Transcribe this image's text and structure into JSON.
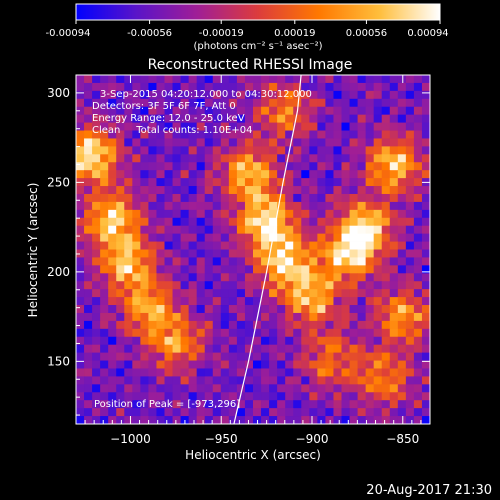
{
  "chart_data": {
    "type": "heatmap",
    "title": "Reconstructed RHESSI Image",
    "xlabel": "Heliocentric X (arcsec)",
    "ylabel": "Heliocentric Y (arcsec)",
    "xlim": [
      -1030,
      -835
    ],
    "ylim": [
      115,
      310
    ],
    "xticks": [
      -1000,
      -950,
      -900,
      -850
    ],
    "xtick_labels": [
      "−1000",
      "−950",
      "−900",
      "−850"
    ],
    "yticks": [
      150,
      200,
      250,
      300
    ],
    "ytick_labels": [
      "150",
      "200",
      "250",
      "300"
    ],
    "colorbar": {
      "range": [
        -0.00094,
        0.00094
      ],
      "ticks": [
        -0.00094,
        -0.00056,
        -0.00019,
        0.00019,
        0.00056,
        0.00094
      ],
      "tick_labels": [
        "-0.00094",
        "-0.00056",
        "-0.00019",
        "0.00019",
        "0.00056",
        "0.00094"
      ],
      "unit_label": "(photons cm⁻² s⁻¹ asec⁻²)",
      "colors": [
        "#0000ff",
        "#5a14c8",
        "#a01e96",
        "#dc3c3c",
        "#ff7800",
        "#ffbe3c",
        "#ffffff"
      ]
    },
    "annotations": {
      "time_range": "3-Sep-2015 04:20:12.000 to 04:30:12.000",
      "detectors": "Detectors: 3F 5F 6F 7F, Att 0",
      "energy_range": "Energy Range: 12.0 - 25.0 keV",
      "method_counts": "Clean     Total counts: 1.10E+04",
      "peak": "Position of Peak = [-973,296]"
    },
    "peak_position": [
      -973,
      296
    ],
    "limb_line": [
      [
        -943,
        115
      ],
      [
        -935,
        150
      ],
      [
        -925,
        200
      ],
      [
        -916,
        250
      ],
      [
        -908,
        290
      ],
      [
        -906,
        310
      ]
    ],
    "bright_regions": [
      {
        "x": -1022,
        "y": 265,
        "level": 1.0
      },
      {
        "x": -1010,
        "y": 230,
        "level": 0.85
      },
      {
        "x": -1002,
        "y": 205,
        "level": 0.8
      },
      {
        "x": -990,
        "y": 180,
        "level": 0.7
      },
      {
        "x": -975,
        "y": 160,
        "level": 0.65
      },
      {
        "x": -935,
        "y": 255,
        "level": 0.8
      },
      {
        "x": -925,
        "y": 228,
        "level": 0.95
      },
      {
        "x": -915,
        "y": 205,
        "level": 0.85
      },
      {
        "x": -900,
        "y": 185,
        "level": 0.75
      },
      {
        "x": -880,
        "y": 210,
        "level": 0.85
      },
      {
        "x": -870,
        "y": 225,
        "level": 0.8
      },
      {
        "x": -855,
        "y": 260,
        "level": 0.85
      },
      {
        "x": -850,
        "y": 175,
        "level": 0.7
      },
      {
        "x": -860,
        "y": 140,
        "level": 0.6
      },
      {
        "x": -890,
        "y": 150,
        "level": 0.55
      },
      {
        "x": -915,
        "y": 290,
        "level": 0.6
      }
    ]
  },
  "footer": {
    "date": "20-Aug-2017 21:30"
  }
}
